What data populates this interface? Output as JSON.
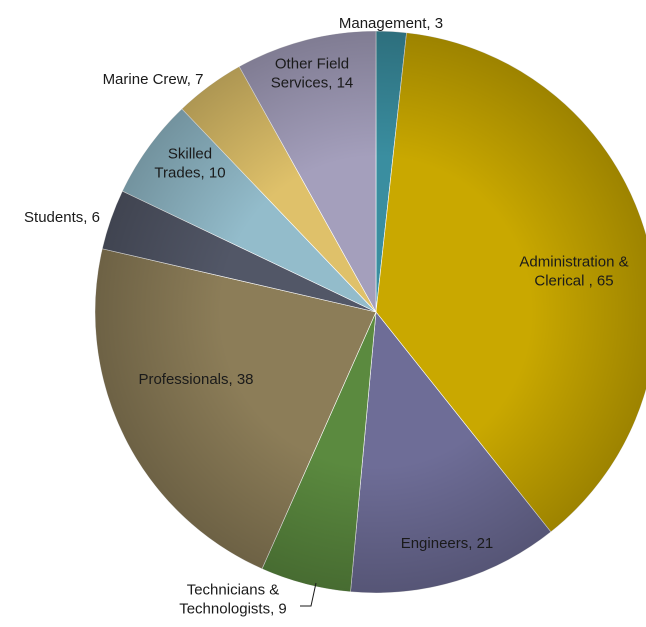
{
  "chart_data": {
    "type": "pie",
    "title": "",
    "start_angle_deg": 0,
    "direction": "clockwise",
    "slices": [
      {
        "name": "Management",
        "value": 3,
        "label": "Management, 3",
        "color": "#3a8ea0"
      },
      {
        "name": "Administration & Clerical",
        "value": 65,
        "label": [
          "Administration &",
          "Clerical , 65"
        ],
        "color": "#c9a800"
      },
      {
        "name": "Engineers",
        "value": 21,
        "label": "Engineers, 21",
        "color": "#6e6d97"
      },
      {
        "name": "Technicians & Technologists",
        "value": 9,
        "label": [
          "Technicians &",
          "Technologists, 9"
        ],
        "color": "#5b8a3f"
      },
      {
        "name": "Professionals",
        "value": 38,
        "label": "Professionals, 38",
        "color": "#8c7d58"
      },
      {
        "name": "Students",
        "value": 6,
        "label": "Students, 6",
        "color": "#525767"
      },
      {
        "name": "Skilled Trades",
        "value": 10,
        "label": [
          "Skilled",
          "Trades, 10"
        ],
        "color": "#93bccb"
      },
      {
        "name": "Marine Crew",
        "value": 7,
        "label": "Marine Crew, 7",
        "color": "#dfc16a"
      },
      {
        "name": "Other Field Services",
        "value": 14,
        "label": [
          "Other Field",
          "Services, 14"
        ],
        "color": "#a49fbc"
      }
    ]
  }
}
